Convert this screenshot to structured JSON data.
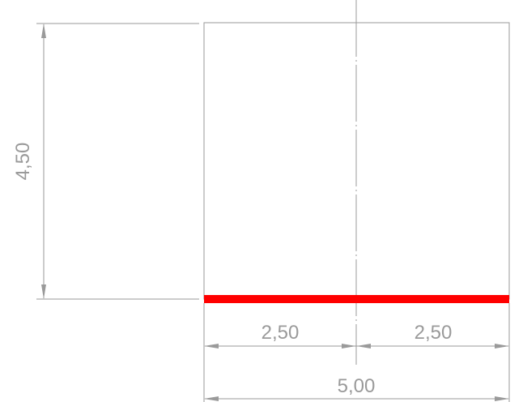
{
  "drawing": {
    "dimensions": {
      "height": "4,50",
      "left_half": "2,50",
      "right_half": "2,50",
      "total_width": "5,00"
    },
    "colors": {
      "line": "#9a9a9a",
      "highlight": "#ff0000"
    }
  }
}
